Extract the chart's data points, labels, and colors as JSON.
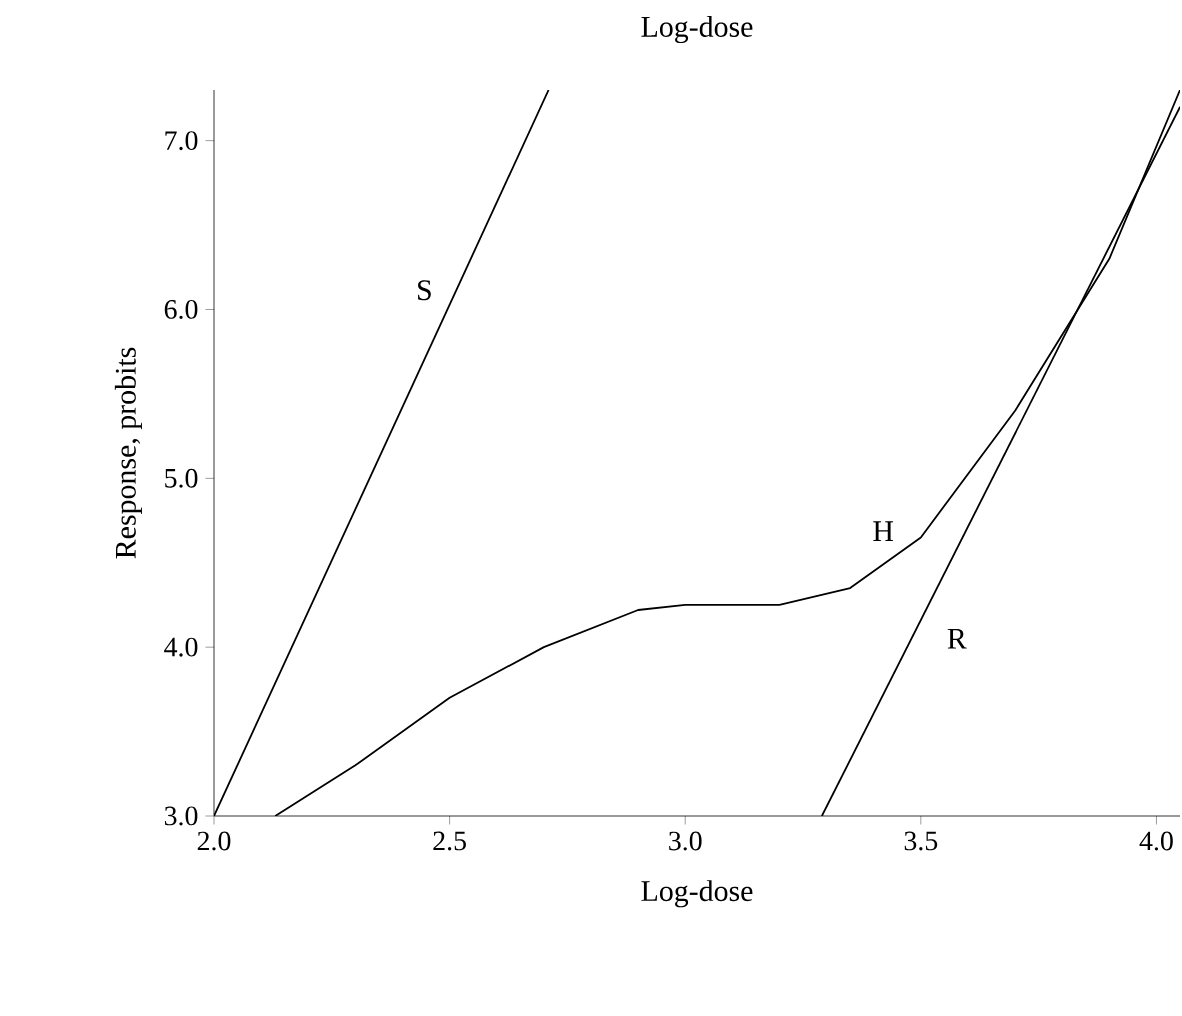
{
  "chart_data": {
    "type": "line",
    "title": "Log-dose",
    "xlabel": "Log-dose",
    "ylabel": "Response, probits",
    "xlim": [
      2.0,
      4.05
    ],
    "ylim": [
      3.0,
      7.3
    ],
    "xticks": [
      {
        "value": 2.0,
        "label": "2.0"
      },
      {
        "value": 2.5,
        "label": "2.5"
      },
      {
        "value": 3.0,
        "label": "3.0"
      },
      {
        "value": 3.5,
        "label": "3.5"
      },
      {
        "value": 4.0,
        "label": "4.0"
      }
    ],
    "yticks": [
      {
        "value": 3.0,
        "label": "3.0"
      },
      {
        "value": 4.0,
        "label": "4.0"
      },
      {
        "value": 5.0,
        "label": "5.0"
      },
      {
        "value": 6.0,
        "label": "6.0"
      },
      {
        "value": 7.0,
        "label": "7.0"
      }
    ],
    "grid": false,
    "legend": false,
    "marker": "none",
    "line_style": "solid",
    "series": [
      {
        "name": "S",
        "color": "#000000",
        "x": [
          2.0,
          2.71
        ],
        "values": [
          3.0,
          7.3
        ]
      },
      {
        "name": "H",
        "color": "#000000",
        "x": [
          2.13,
          2.3,
          2.5,
          2.7,
          2.9,
          3.0,
          3.2,
          3.35,
          3.5,
          3.7,
          3.9,
          4.05
        ],
        "values": [
          3.0,
          3.3,
          3.7,
          4.0,
          4.22,
          4.25,
          4.25,
          4.35,
          4.65,
          5.4,
          6.3,
          7.3
        ]
      },
      {
        "name": "R",
        "color": "#000000",
        "x": [
          3.29,
          4.05
        ],
        "values": [
          3.0,
          7.2
        ]
      }
    ]
  }
}
